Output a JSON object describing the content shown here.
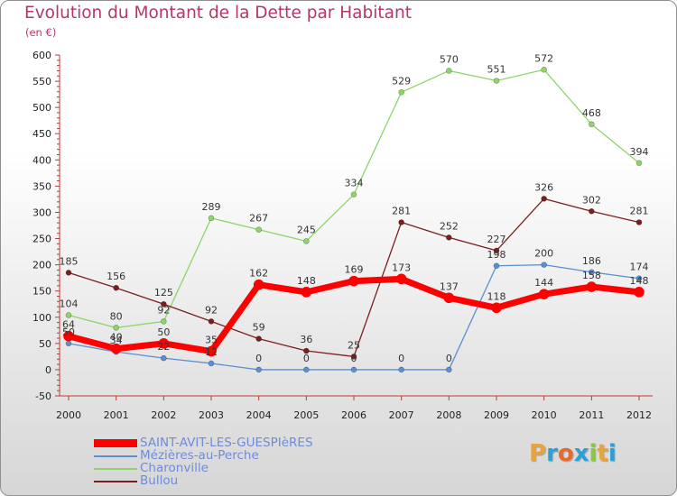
{
  "header": {
    "title": "Evolution du Montant de la Dette par Habitant",
    "subtitle": "(en €)"
  },
  "logo": {
    "text": "Proxiti",
    "colors": [
      "#e8a33c",
      "#2aa0d8",
      "#e86a2a",
      "#2aa0d8",
      "#8cc63f",
      "#e8a33c",
      "#2aa0d8"
    ]
  },
  "chart_data": {
    "type": "line",
    "x": [
      "2000",
      "2001",
      "2002",
      "2003",
      "2004",
      "2005",
      "2006",
      "2007",
      "2008",
      "2009",
      "2010",
      "2011",
      "2012"
    ],
    "ylim": [
      -50,
      600
    ],
    "yticks": [
      -50,
      0,
      50,
      100,
      150,
      200,
      250,
      300,
      350,
      400,
      450,
      500,
      550,
      600
    ],
    "grid": false,
    "legend_position": "bottom-left",
    "series": [
      {
        "name": "SAINT-AVIT-LES-GUESPIèRES",
        "color": "#ff0000",
        "values": [
          64,
          40,
          50,
          35,
          162,
          148,
          169,
          173,
          137,
          118,
          144,
          158,
          148
        ],
        "labels": [
          "64",
          "40",
          "50",
          "35",
          "162",
          "148",
          "169",
          "173",
          "137",
          "118",
          "144",
          "158",
          "148"
        ]
      },
      {
        "name": "Mézières-au-Perche",
        "color": "#5b8fd0",
        "values": [
          50,
          34,
          22,
          12,
          0,
          0,
          0,
          0,
          0,
          198,
          200,
          186,
          174
        ],
        "labels": [
          "50",
          "34",
          "22",
          "12",
          "0",
          "0",
          "0",
          "0",
          "0",
          "198",
          "200",
          "186",
          "174"
        ]
      },
      {
        "name": "Charonville",
        "color": "#8fd46a",
        "values": [
          104,
          80,
          92,
          289,
          267,
          245,
          334,
          529,
          570,
          551,
          572,
          468,
          394
        ],
        "labels": [
          "104",
          "80",
          "92",
          "289",
          "267",
          "245",
          "334",
          "529",
          "570",
          "551",
          "572",
          "468",
          "394"
        ]
      },
      {
        "name": "Bullou",
        "color": "#7a1f1f",
        "values": [
          185,
          156,
          125,
          92,
          59,
          36,
          25,
          281,
          252,
          227,
          326,
          302,
          281
        ],
        "labels": [
          "185",
          "156",
          "125",
          "92",
          "59",
          "36",
          "25",
          "281",
          "252",
          "227",
          "326",
          "302",
          "281"
        ]
      }
    ]
  }
}
